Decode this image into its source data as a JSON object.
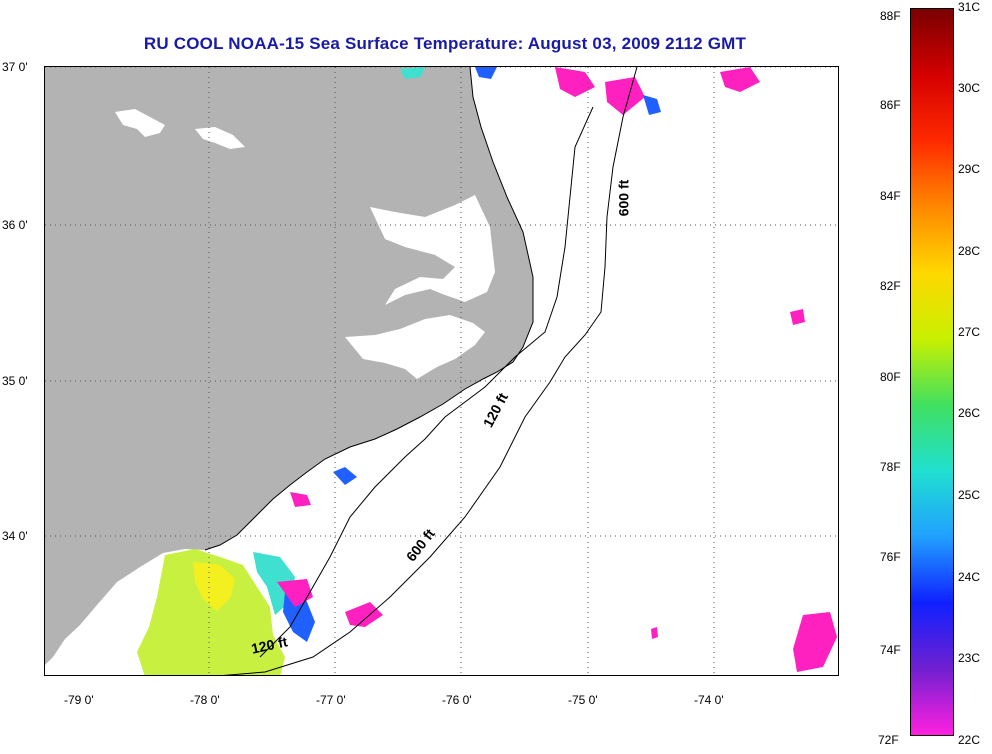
{
  "title": "RU COOL  NOAA-15  Sea Surface Temperature:  August 03, 2009 2112 GMT",
  "map": {
    "lat_labels": [
      "37 0'",
      "36 0'",
      "35 0'",
      "34 0'"
    ],
    "lon_labels": [
      "-79 0'",
      "-78 0'",
      "-77 0'",
      "-76 0'",
      "-75 0'",
      "-74 0'"
    ],
    "contour_labels": [
      "600 ft",
      "120 ft",
      "600 ft",
      "120 ft"
    ],
    "colors": {
      "land": "#b3b3b3",
      "grid": "#555555",
      "contour": "#000000"
    }
  },
  "colorbar": {
    "fahrenheit_ticks": [
      "88F",
      "86F",
      "84F",
      "82F",
      "80F",
      "78F",
      "76F",
      "74F",
      "72F"
    ],
    "celsius_ticks": [
      "31C",
      "30C",
      "29C",
      "28C",
      "27C",
      "26C",
      "25C",
      "24C",
      "23C",
      "22C"
    ],
    "gradient": [
      "#7a0000",
      "#d40000",
      "#ff2a00",
      "#ff8800",
      "#ffd800",
      "#c8f000",
      "#40e060",
      "#20e0d0",
      "#20a0ff",
      "#1020ff",
      "#7020d0",
      "#ff20e0"
    ]
  }
}
